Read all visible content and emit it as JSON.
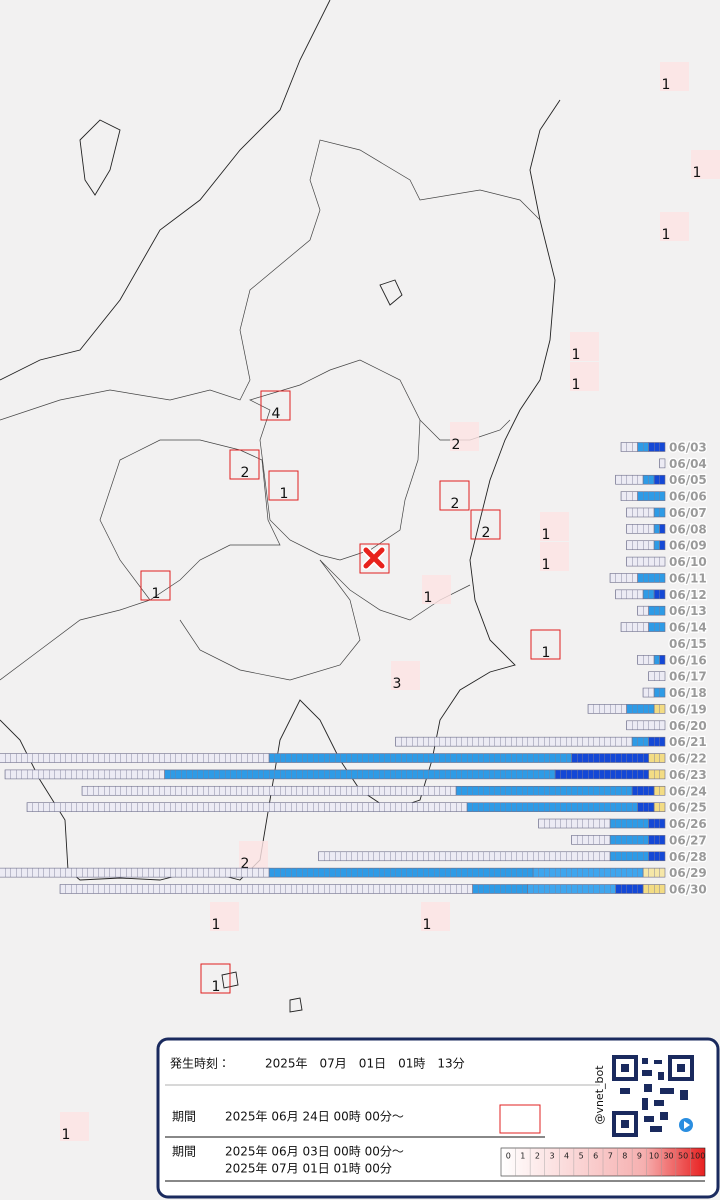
{
  "map_labels": [
    1,
    1,
    1,
    1,
    1,
    4,
    2,
    2,
    1,
    2,
    2,
    1,
    1,
    1,
    1,
    3,
    1,
    2,
    1,
    1,
    1,
    1
  ],
  "daily_bars": [
    {
      "date": "06/03",
      "segments": [
        {
          "color": "#ecebf4",
          "cells": 3
        },
        {
          "color": "#2e9be6",
          "cells": 2
        },
        {
          "color": "#1448d6",
          "cells": 3
        }
      ]
    },
    {
      "date": "06/04",
      "segments": [
        {
          "color": "#ecebf4",
          "cells": 1
        }
      ]
    },
    {
      "date": "06/05",
      "segments": [
        {
          "color": "#ecebf4",
          "cells": 5
        },
        {
          "color": "#2e9be6",
          "cells": 2
        },
        {
          "color": "#1448d6",
          "cells": 2
        }
      ]
    },
    {
      "date": "06/06",
      "segments": [
        {
          "color": "#ecebf4",
          "cells": 3
        },
        {
          "color": "#2e9be6",
          "cells": 5
        }
      ]
    },
    {
      "date": "06/07",
      "segments": [
        {
          "color": "#ecebf4",
          "cells": 5
        },
        {
          "color": "#2e9be6",
          "cells": 2
        }
      ]
    },
    {
      "date": "06/08",
      "segments": [
        {
          "color": "#ecebf4",
          "cells": 5
        },
        {
          "color": "#2e9be6",
          "cells": 1
        },
        {
          "color": "#1448d6",
          "cells": 1
        }
      ]
    },
    {
      "date": "06/09",
      "segments": [
        {
          "color": "#ecebf4",
          "cells": 5
        },
        {
          "color": "#2e9be6",
          "cells": 1
        },
        {
          "color": "#1448d6",
          "cells": 1
        }
      ]
    },
    {
      "date": "06/10",
      "segments": [
        {
          "color": "#ecebf4",
          "cells": 7
        }
      ]
    },
    {
      "date": "06/11",
      "segments": [
        {
          "color": "#ecebf4",
          "cells": 5
        },
        {
          "color": "#2e9be6",
          "cells": 5
        }
      ]
    },
    {
      "date": "06/12",
      "segments": [
        {
          "color": "#ecebf4",
          "cells": 5
        },
        {
          "color": "#2e9be6",
          "cells": 2
        },
        {
          "color": "#1448d6",
          "cells": 2
        }
      ]
    },
    {
      "date": "06/13",
      "segments": [
        {
          "color": "#ecebf4",
          "cells": 2
        },
        {
          "color": "#2e9be6",
          "cells": 3
        }
      ]
    },
    {
      "date": "06/14",
      "segments": [
        {
          "color": "#ecebf4",
          "cells": 5
        },
        {
          "color": "#2e9be6",
          "cells": 3
        }
      ]
    },
    {
      "date": "06/15",
      "segments": []
    },
    {
      "date": "06/16",
      "segments": [
        {
          "color": "#ecebf4",
          "cells": 3
        },
        {
          "color": "#2e9be6",
          "cells": 1
        },
        {
          "color": "#1448d6",
          "cells": 1
        }
      ]
    },
    {
      "date": "06/17",
      "segments": [
        {
          "color": "#ecebf4",
          "cells": 3
        }
      ]
    },
    {
      "date": "06/18",
      "segments": [
        {
          "color": "#ecebf4",
          "cells": 2
        },
        {
          "color": "#2e9be6",
          "cells": 2
        }
      ]
    },
    {
      "date": "06/19",
      "segments": [
        {
          "color": "#ecebf4",
          "cells": 7
        },
        {
          "color": "#2e9be6",
          "cells": 5
        },
        {
          "color": "#f3dc84",
          "cells": 2
        }
      ]
    },
    {
      "date": "06/20",
      "segments": [
        {
          "color": "#ecebf4",
          "cells": 7
        }
      ]
    },
    {
      "date": "06/21",
      "segments": [
        {
          "color": "#ecebf4",
          "cells": 43
        },
        {
          "color": "#2e9be6",
          "cells": 3
        },
        {
          "color": "#1448d6",
          "cells": 3
        }
      ]
    },
    {
      "date": "06/22",
      "segments": [
        {
          "color": "#ecebf4",
          "cells": 49
        },
        {
          "color": "#2e9be6",
          "cells": 55
        },
        {
          "color": "#1448d6",
          "cells": 14
        },
        {
          "color": "#f3dc84",
          "cells": 3
        }
      ]
    },
    {
      "date": "06/23",
      "segments": [
        {
          "color": "#ecebf4",
          "cells": 29
        },
        {
          "color": "#2e9be6",
          "cells": 71
        },
        {
          "color": "#1448d6",
          "cells": 17
        },
        {
          "color": "#f3dc84",
          "cells": 3
        }
      ]
    },
    {
      "date": "06/24",
      "segments": [
        {
          "color": "#ecebf4",
          "cells": 68
        },
        {
          "color": "#2e9be6",
          "cells": 32
        },
        {
          "color": "#1448d6",
          "cells": 4
        },
        {
          "color": "#f3dc84",
          "cells": 2
        }
      ]
    },
    {
      "date": "06/25",
      "segments": [
        {
          "color": "#ecebf4",
          "cells": 80
        },
        {
          "color": "#2e9be6",
          "cells": 31
        },
        {
          "color": "#1448d6",
          "cells": 3
        },
        {
          "color": "#f3dc84",
          "cells": 2
        }
      ]
    },
    {
      "date": "06/26",
      "segments": [
        {
          "color": "#ecebf4",
          "cells": 13
        },
        {
          "color": "#2e9be6",
          "cells": 7
        },
        {
          "color": "#1448d6",
          "cells": 3
        }
      ]
    },
    {
      "date": "06/27",
      "segments": [
        {
          "color": "#ecebf4",
          "cells": 7
        },
        {
          "color": "#2e9be6",
          "cells": 7
        },
        {
          "color": "#1448d6",
          "cells": 3
        }
      ]
    },
    {
      "date": "06/28",
      "segments": [
        {
          "color": "#ecebf4",
          "cells": 53
        },
        {
          "color": "#2e9be6",
          "cells": 7
        },
        {
          "color": "#1448d6",
          "cells": 3
        }
      ]
    },
    {
      "date": "06/29",
      "segments": [
        {
          "color": "#ecebf4",
          "cells": 49
        },
        {
          "color": "#2e9be6",
          "cells": 48
        },
        {
          "color": "#3fa6ee",
          "cells": 20
        },
        {
          "color": "#f6e7a8",
          "cells": 4
        }
      ]
    },
    {
      "date": "06/30",
      "segments": [
        {
          "color": "#ecebf4",
          "cells": 75
        },
        {
          "color": "#2e9be6",
          "cells": 10
        },
        {
          "color": "#3fa6ee",
          "cells": 16
        },
        {
          "color": "#1448d6",
          "cells": 5
        },
        {
          "color": "#f3dc84",
          "cells": 4
        }
      ]
    }
  ],
  "panel": {
    "occurred_label": "発生時刻：",
    "occurred_time": "2025年　07月　01日　01時　13分",
    "period_label": "期間",
    "recent_start": "2025年 06月 24日 00時 00分～",
    "period_label_2": "期間",
    "period_start": "2025年 06月 03日 00時 00分～",
    "period_end": "2025年 07月 01日 01時 00分",
    "account": "@vnet_bot"
  },
  "scale": [
    0,
    1,
    2,
    3,
    4,
    5,
    6,
    7,
    8,
    9,
    10,
    30,
    50,
    100
  ]
}
